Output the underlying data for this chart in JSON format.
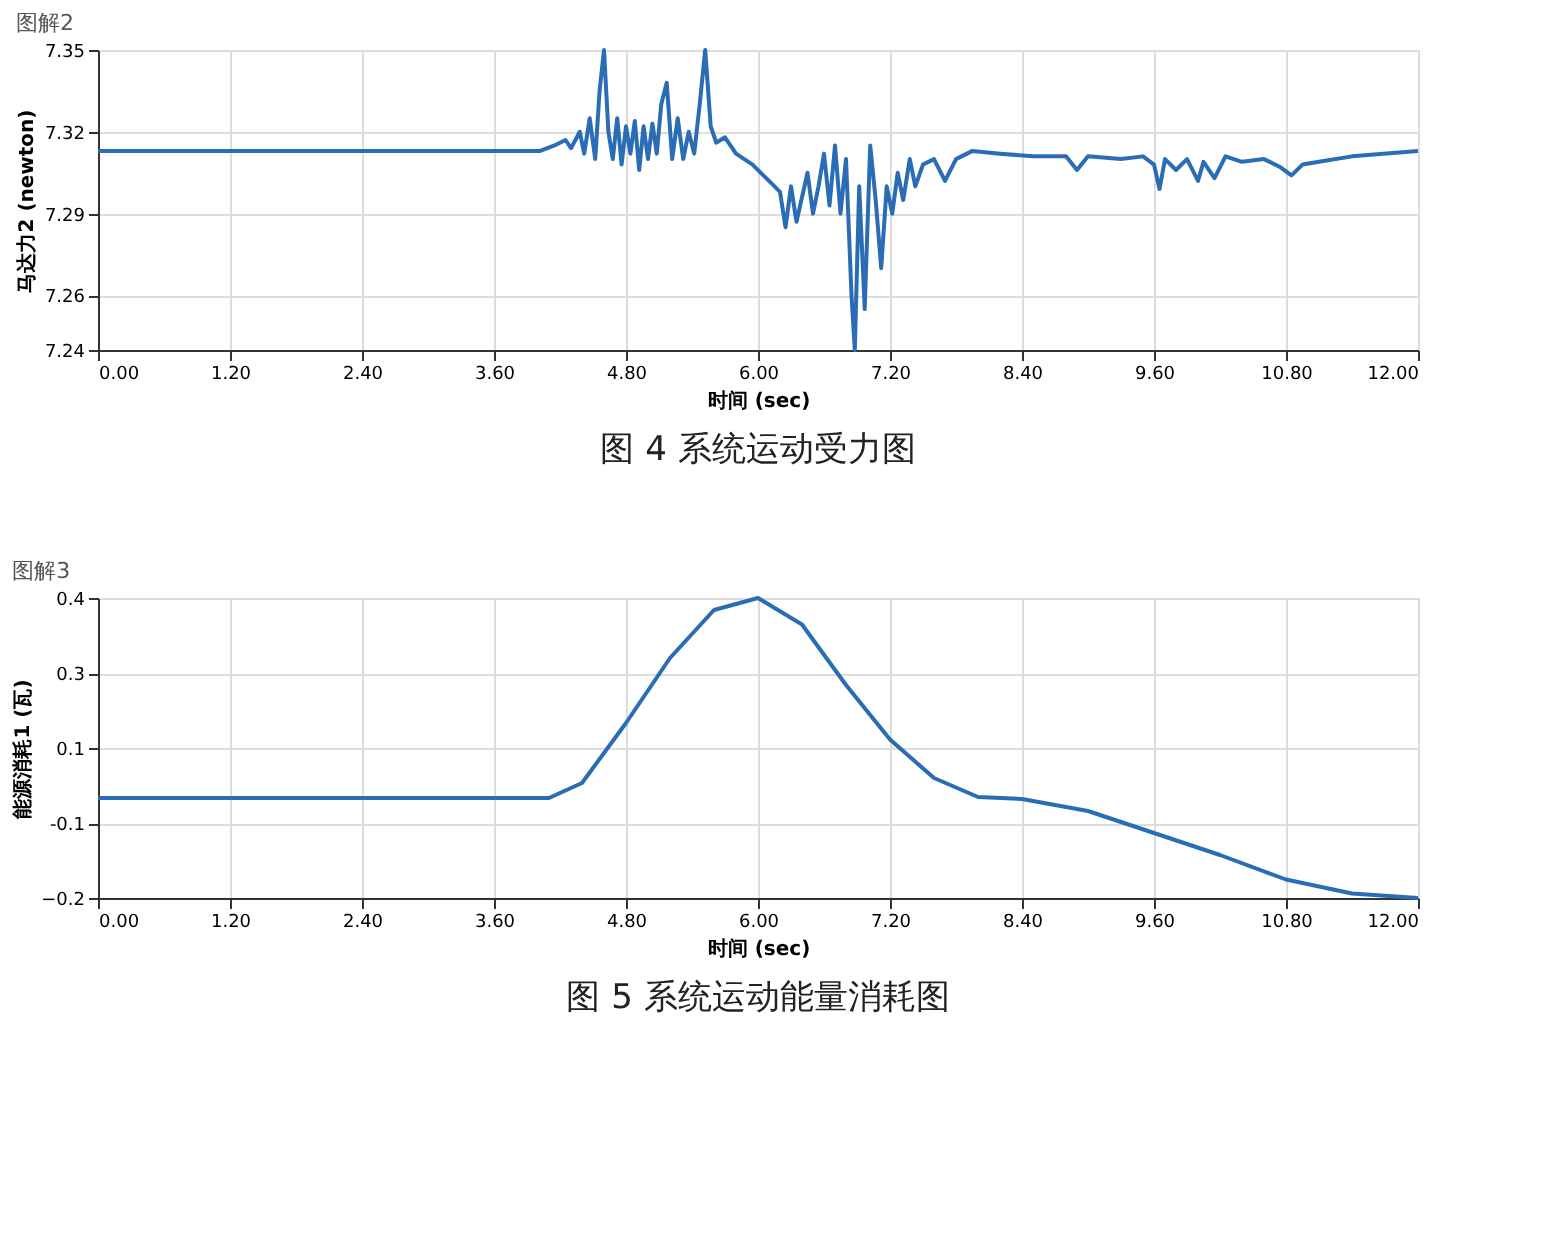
{
  "chart_data": [
    {
      "type": "line",
      "title": "图解2",
      "xlabel": "时间 (sec)",
      "ylabel": "马达力2 (newton)",
      "annotations": [
        "图 4   系统运动受力图"
      ],
      "xlim": [
        0,
        12
      ],
      "xticks": [
        {
          "value": 0,
          "label": "0.00"
        },
        {
          "value": 1.2,
          "label": "1.20"
        },
        {
          "value": 2.4,
          "label": "2.40"
        },
        {
          "value": 3.6,
          "label": "3.60"
        },
        {
          "value": 4.8,
          "label": "4.80"
        },
        {
          "value": 6,
          "label": "6.00"
        },
        {
          "value": 7.2,
          "label": "7.20"
        },
        {
          "value": 8.4,
          "label": "8.40"
        },
        {
          "value": 9.6,
          "label": "9.60"
        },
        {
          "value": 10.8,
          "label": "10.80"
        },
        {
          "value": 12,
          "label": "12.00"
        }
      ],
      "ylim": [
        7.24,
        7.35
      ],
      "yticks": [
        7.24,
        7.26,
        7.29,
        7.32,
        7.35
      ],
      "grid": true,
      "line_style": "solid",
      "series": [
        {
          "color": "#2a6db5",
          "x": [
            0,
            4.02,
            4.15,
            4.25,
            4.3,
            4.38,
            4.42,
            4.47,
            4.52,
            4.56,
            4.6,
            4.64,
            4.68,
            4.72,
            4.76,
            4.8,
            4.84,
            4.88,
            4.92,
            4.96,
            5.0,
            5.04,
            5.08,
            5.12,
            5.17,
            5.22,
            5.27,
            5.32,
            5.37,
            5.42,
            5.47,
            5.52,
            5.57,
            5.62,
            5.7,
            5.8,
            5.95,
            6.1,
            6.2,
            6.25,
            6.3,
            6.35,
            6.4,
            6.45,
            6.5,
            6.55,
            6.6,
            6.65,
            6.7,
            6.75,
            6.8,
            6.85,
            6.88,
            6.92,
            6.97,
            7.02,
            7.07,
            7.12,
            7.17,
            7.22,
            7.27,
            7.32,
            7.38,
            7.43,
            7.5,
            7.6,
            7.7,
            7.8,
            7.95,
            8.2,
            8.5,
            8.8,
            8.9,
            9.0,
            9.3,
            9.5,
            9.6,
            9.65,
            9.7,
            9.8,
            9.9,
            10.0,
            10.05,
            10.15,
            10.25,
            10.4,
            10.6,
            10.75,
            10.85,
            10.95,
            11.1,
            11.4,
            12.0
          ],
          "values": [
            7.313,
            7.313,
            7.315,
            7.317,
            7.314,
            7.32,
            7.312,
            7.325,
            7.31,
            7.335,
            7.35,
            7.32,
            7.31,
            7.325,
            7.308,
            7.322,
            7.312,
            7.324,
            7.306,
            7.322,
            7.31,
            7.323,
            7.312,
            7.33,
            7.338,
            7.31,
            7.325,
            7.31,
            7.32,
            7.312,
            7.33,
            7.35,
            7.322,
            7.316,
            7.318,
            7.312,
            7.308,
            7.302,
            7.298,
            7.285,
            7.3,
            7.287,
            7.296,
            7.305,
            7.29,
            7.3,
            7.312,
            7.293,
            7.315,
            7.29,
            7.31,
            7.26,
            7.24,
            7.3,
            7.255,
            7.315,
            7.295,
            7.27,
            7.3,
            7.29,
            7.305,
            7.295,
            7.31,
            7.3,
            7.308,
            7.31,
            7.302,
            7.31,
            7.313,
            7.312,
            7.311,
            7.311,
            7.306,
            7.311,
            7.31,
            7.311,
            7.308,
            7.299,
            7.31,
            7.306,
            7.31,
            7.302,
            7.309,
            7.303,
            7.311,
            7.309,
            7.31,
            7.307,
            7.304,
            7.308,
            7.309,
            7.311,
            7.313
          ]
        }
      ]
    },
    {
      "type": "line",
      "title": "图解3",
      "xlabel": "时间 (sec)",
      "ylabel": "能源消耗1 (瓦)",
      "annotations": [
        "图 5   系统运动能量消耗图"
      ],
      "xlim": [
        0,
        12
      ],
      "xticks": [
        {
          "value": 0,
          "label": "0.00"
        },
        {
          "value": 1.2,
          "label": "1.20"
        },
        {
          "value": 2.4,
          "label": "2.40"
        },
        {
          "value": 3.6,
          "label": "3.60"
        },
        {
          "value": 4.8,
          "label": "4.80"
        },
        {
          "value": 6,
          "label": "6.00"
        },
        {
          "value": 7.2,
          "label": "7.20"
        },
        {
          "value": 8.4,
          "label": "8.40"
        },
        {
          "value": 9.6,
          "label": "9.60"
        },
        {
          "value": 10.8,
          "label": "10.80"
        },
        {
          "value": 12,
          "label": "12.00"
        }
      ],
      "ylim": [
        -0.2,
        0.4
      ],
      "yticks": [
        -0.2,
        {
          "value": -0.05,
          "label": "-0.1"
        },
        {
          "value": 0.1,
          "label": "0.1"
        },
        {
          "value": 0.25,
          "label": "0.3"
        },
        0.4
      ],
      "grid": true,
      "line_style": "solid",
      "series": [
        {
          "color": "#2a6db5",
          "x": [
            0,
            4.1,
            4.4,
            4.8,
            5.2,
            5.6,
            6.0,
            6.4,
            6.8,
            7.2,
            7.6,
            8.0,
            8.4,
            9.0,
            9.6,
            10.2,
            10.8,
            11.4,
            12.0
          ],
          "values": [
            0.0,
            0.0,
            0.03,
            0.15,
            0.28,
            0.376,
            0.4,
            0.347,
            0.226,
            0.117,
            0.04,
            0.002,
            -0.002,
            -0.026,
            -0.07,
            -0.114,
            -0.163,
            -0.191,
            -0.2
          ]
        }
      ]
    }
  ]
}
